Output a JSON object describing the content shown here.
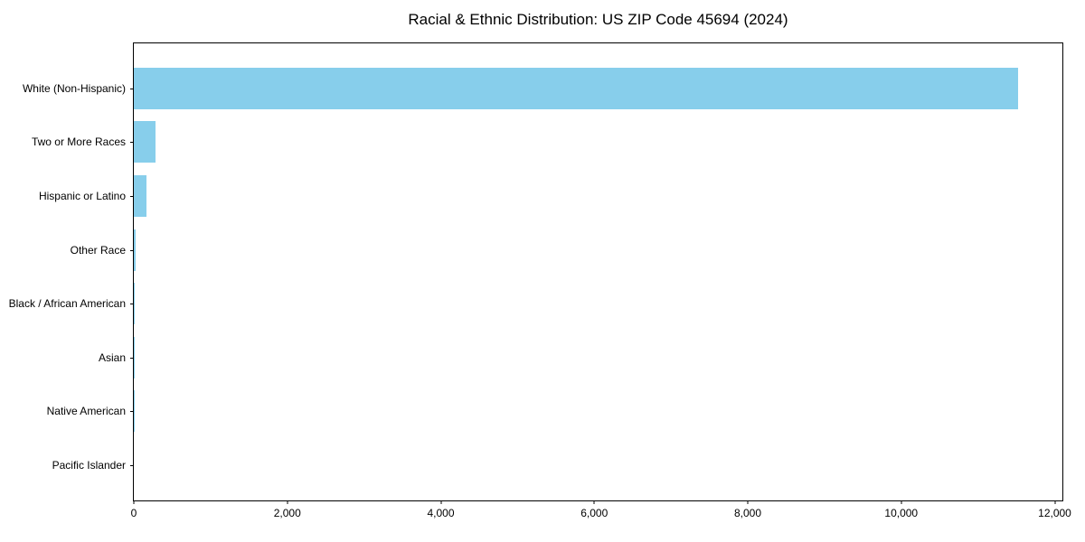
{
  "chart_data": {
    "type": "bar",
    "orientation": "horizontal",
    "title": "Racial & Ethnic Distribution: US ZIP Code 45694 (2024)",
    "categories": [
      "White (Non-Hispanic)",
      "Two or More Races",
      "Hispanic or Latino",
      "Other Race",
      "Black / African American",
      "Asian",
      "Native American",
      "Pacific Islander"
    ],
    "values": [
      11520,
      285,
      168,
      25,
      12,
      8,
      5,
      0
    ],
    "xlabel": "",
    "ylabel": "",
    "xlim": [
      0,
      12100
    ],
    "xticks": [
      0,
      2000,
      4000,
      6000,
      8000,
      10000,
      12000
    ],
    "xticklabels": [
      "0",
      "2,000",
      "4,000",
      "6,000",
      "8,000",
      "10,000",
      "12,000"
    ],
    "grid": false,
    "legend": false,
    "bar_color": "#87CEEB",
    "spine_color": "#000000",
    "background_color": "#ffffff"
  }
}
